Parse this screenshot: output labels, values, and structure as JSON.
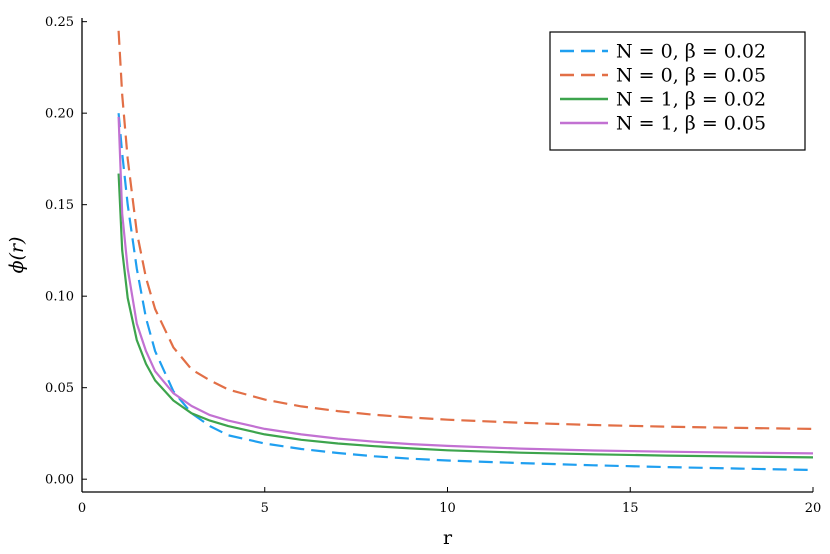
{
  "chart_data": {
    "type": "line",
    "xlabel": "r",
    "ylabel": "ϕ(r)",
    "xlim": [
      0,
      20
    ],
    "ylim": [
      -0.007,
      0.252
    ],
    "xticks": [
      0,
      5,
      10,
      15,
      20
    ],
    "xtick_labels": [
      "0",
      "5",
      "10",
      "15",
      "20"
    ],
    "yticks": [
      0.0,
      0.05,
      0.1,
      0.15,
      0.2,
      0.25
    ],
    "ytick_labels": [
      "0.00",
      "0.05",
      "0.10",
      "0.15",
      "0.20",
      "0.25"
    ],
    "grid": false,
    "legend_position": "top-right",
    "series": [
      {
        "name": "N = 0, β = 0.02",
        "color": "#1f9ff0",
        "dash": "dashed",
        "x": [
          1.0,
          1.1,
          1.25,
          1.5,
          1.75,
          2.0,
          2.5,
          3.0,
          3.5,
          4.0,
          5.0,
          6.0,
          7.0,
          8.0,
          9.0,
          10.0,
          12.0,
          14.0,
          16.0,
          18.0,
          20.0
        ],
        "y": [
          0.2,
          0.178,
          0.15,
          0.115,
          0.088,
          0.07,
          0.048,
          0.036,
          0.029,
          0.024,
          0.0195,
          0.0165,
          0.0143,
          0.0125,
          0.0112,
          0.0102,
          0.0088,
          0.0076,
          0.0066,
          0.0058,
          0.005
        ]
      },
      {
        "name": "N = 0, β = 0.05",
        "color": "#e26f46",
        "dash": "dashed",
        "x": [
          1.0,
          1.1,
          1.25,
          1.5,
          1.75,
          2.0,
          2.5,
          3.0,
          3.5,
          4.0,
          5.0,
          6.0,
          7.0,
          8.0,
          9.0,
          10.0,
          12.0,
          14.0,
          16.0,
          18.0,
          20.0
        ],
        "y": [
          0.245,
          0.21,
          0.175,
          0.135,
          0.11,
          0.093,
          0.072,
          0.06,
          0.054,
          0.049,
          0.0435,
          0.0398,
          0.0372,
          0.0352,
          0.0337,
          0.0325,
          0.0308,
          0.0296,
          0.0287,
          0.028,
          0.0275
        ]
      },
      {
        "name": "N = 1, β = 0.02",
        "color": "#3da44d",
        "dash": "solid",
        "x": [
          1.0,
          1.1,
          1.25,
          1.5,
          1.75,
          2.0,
          2.5,
          3.0,
          3.5,
          4.0,
          5.0,
          6.0,
          7.0,
          8.0,
          9.0,
          10.0,
          12.0,
          14.0,
          16.0,
          18.0,
          20.0
        ],
        "y": [
          0.167,
          0.125,
          0.099,
          0.076,
          0.063,
          0.054,
          0.043,
          0.036,
          0.032,
          0.029,
          0.0245,
          0.0215,
          0.0195,
          0.018,
          0.0168,
          0.0158,
          0.0145,
          0.0136,
          0.0129,
          0.0124,
          0.0119
        ]
      },
      {
        "name": "N = 1, β = 0.05",
        "color": "#c271d2",
        "dash": "solid",
        "x": [
          1.0,
          1.1,
          1.25,
          1.5,
          1.75,
          2.0,
          2.5,
          3.0,
          3.5,
          4.0,
          5.0,
          6.0,
          7.0,
          8.0,
          9.0,
          10.0,
          12.0,
          14.0,
          16.0,
          18.0,
          20.0
        ],
        "y": [
          0.198,
          0.145,
          0.115,
          0.085,
          0.07,
          0.059,
          0.047,
          0.04,
          0.035,
          0.032,
          0.0275,
          0.0245,
          0.0222,
          0.0205,
          0.0192,
          0.0182,
          0.0167,
          0.0157,
          0.015,
          0.0145,
          0.0141
        ]
      }
    ]
  }
}
